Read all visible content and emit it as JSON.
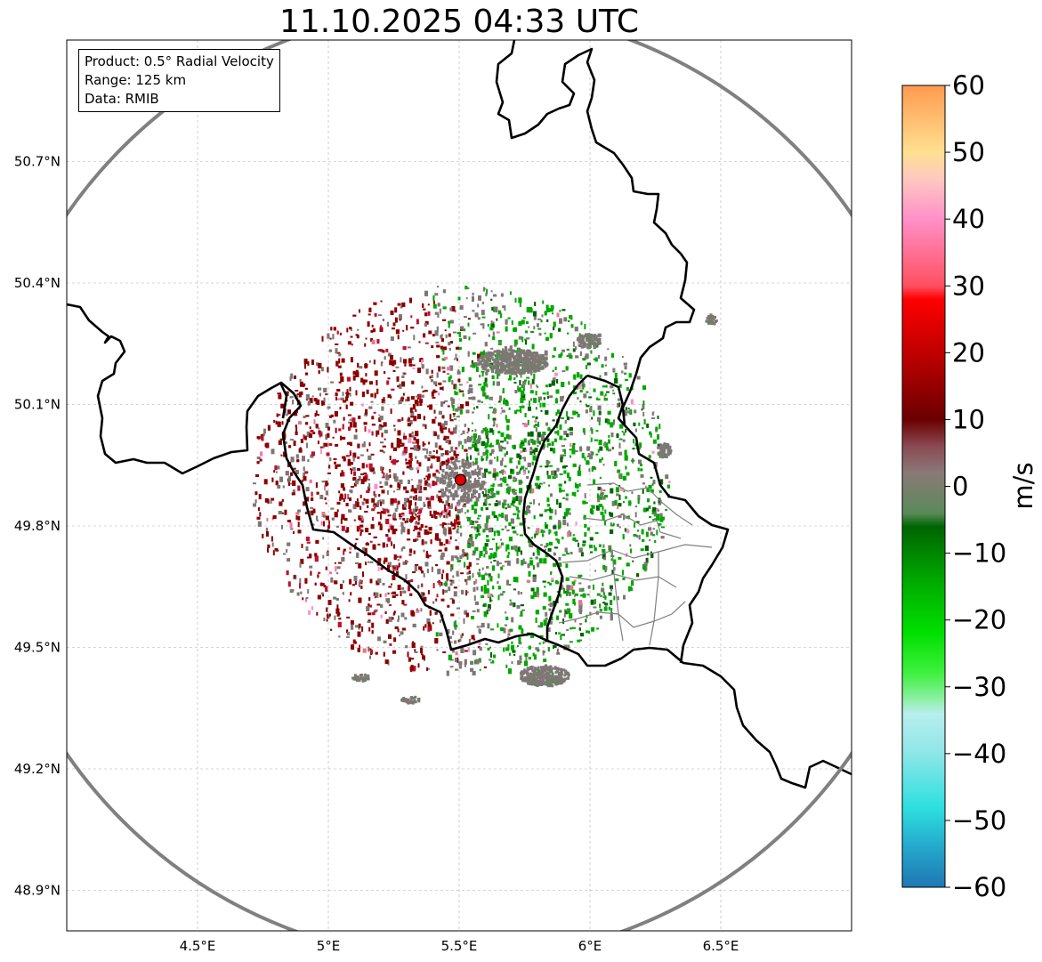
{
  "title": "11.10.2025 04:33 UTC",
  "legend": {
    "product": "Product: 0.5° Radial Velocity",
    "range": "Range: 125 km",
    "data": "Data: RMIB"
  },
  "axes": {
    "lon_labels": [
      "4.5°E",
      "5°E",
      "5.5°E",
      "6°E",
      "6.5°E"
    ],
    "lon_values": [
      4.5,
      5.0,
      5.5,
      6.0,
      6.5
    ],
    "lat_labels": [
      "50.7°N",
      "50.4°N",
      "50.1°N",
      "49.8°N",
      "49.5°N",
      "49.2°N",
      "48.9°N"
    ],
    "lat_values": [
      50.7,
      50.4,
      50.1,
      49.8,
      49.5,
      49.2,
      48.9
    ],
    "lon_range": [
      4.0,
      7.0
    ],
    "lat_range": [
      48.8,
      51.0
    ]
  },
  "radar": {
    "site_lon": 5.505,
    "site_lat": 49.914,
    "range_km": 125
  },
  "colorbar": {
    "label": "m/s",
    "min": -60,
    "max": 60,
    "tick_values": [
      60,
      50,
      40,
      30,
      20,
      10,
      0,
      -10,
      -20,
      -30,
      -40,
      -50,
      -60
    ],
    "tick_labels": [
      "60",
      "50",
      "40",
      "30",
      "20",
      "10",
      "0",
      "−10",
      "−20",
      "−30",
      "−40",
      "−50",
      "−60"
    ],
    "stops": [
      {
        "v": -60,
        "c": "#1f77b4"
      },
      {
        "v": -54,
        "c": "#24a8cc"
      },
      {
        "v": -48,
        "c": "#2ee0e0"
      },
      {
        "v": -40,
        "c": "#8ee6e8"
      },
      {
        "v": -34,
        "c": "#b8eeee"
      },
      {
        "v": -32,
        "c": "#90f0a8"
      },
      {
        "v": -28,
        "c": "#40f040"
      },
      {
        "v": -22,
        "c": "#00e000"
      },
      {
        "v": -14,
        "c": "#00a800"
      },
      {
        "v": -6,
        "c": "#006400"
      },
      {
        "v": -4,
        "c": "#5a8a5a"
      },
      {
        "v": 2,
        "c": "#8a7a78"
      },
      {
        "v": 6,
        "c": "#8a4a52"
      },
      {
        "v": 10,
        "c": "#6a0000"
      },
      {
        "v": 18,
        "c": "#b00000"
      },
      {
        "v": 28,
        "c": "#ff0000"
      },
      {
        "v": 30,
        "c": "#ff5060"
      },
      {
        "v": 40,
        "c": "#ff90c8"
      },
      {
        "v": 46,
        "c": "#ffc8c0"
      },
      {
        "v": 50,
        "c": "#ffe090"
      },
      {
        "v": 60,
        "c": "#ff9a50"
      }
    ]
  },
  "colors": {
    "border": "#000000",
    "range_ring": "#808080",
    "grid": "#b0b0b0",
    "admin_lines": "#808080",
    "site_marker": "#e00000",
    "velocity_outbound": "#8b0000",
    "velocity_inbound": "#00a800",
    "velocity_zero": "#7f7775"
  }
}
